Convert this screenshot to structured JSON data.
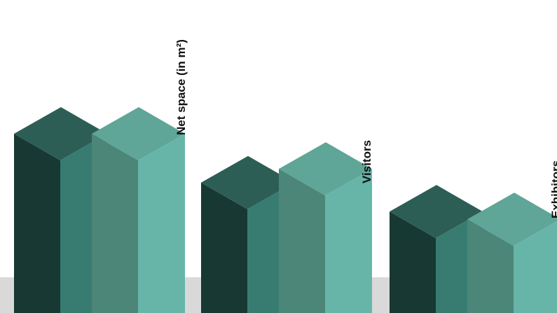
{
  "chart_data": {
    "type": "bar",
    "style": "isometric-3d",
    "categories": [
      "Net space (in m²)",
      "Visitors",
      "Exhibitors"
    ],
    "series": [
      {
        "values": [
          100,
          68,
          49
        ]
      },
      {
        "values": [
          100,
          77,
          44
        ]
      }
    ],
    "colors": {
      "series_0": {
        "top": "#2d5e56",
        "left": "#173833",
        "right": "#387c71"
      },
      "series_1": {
        "top": "#5fa598",
        "left": "#4b8678",
        "right": "#67b5a9"
      },
      "floor": "#d9d9d9"
    },
    "grid": false,
    "legend": "none"
  }
}
